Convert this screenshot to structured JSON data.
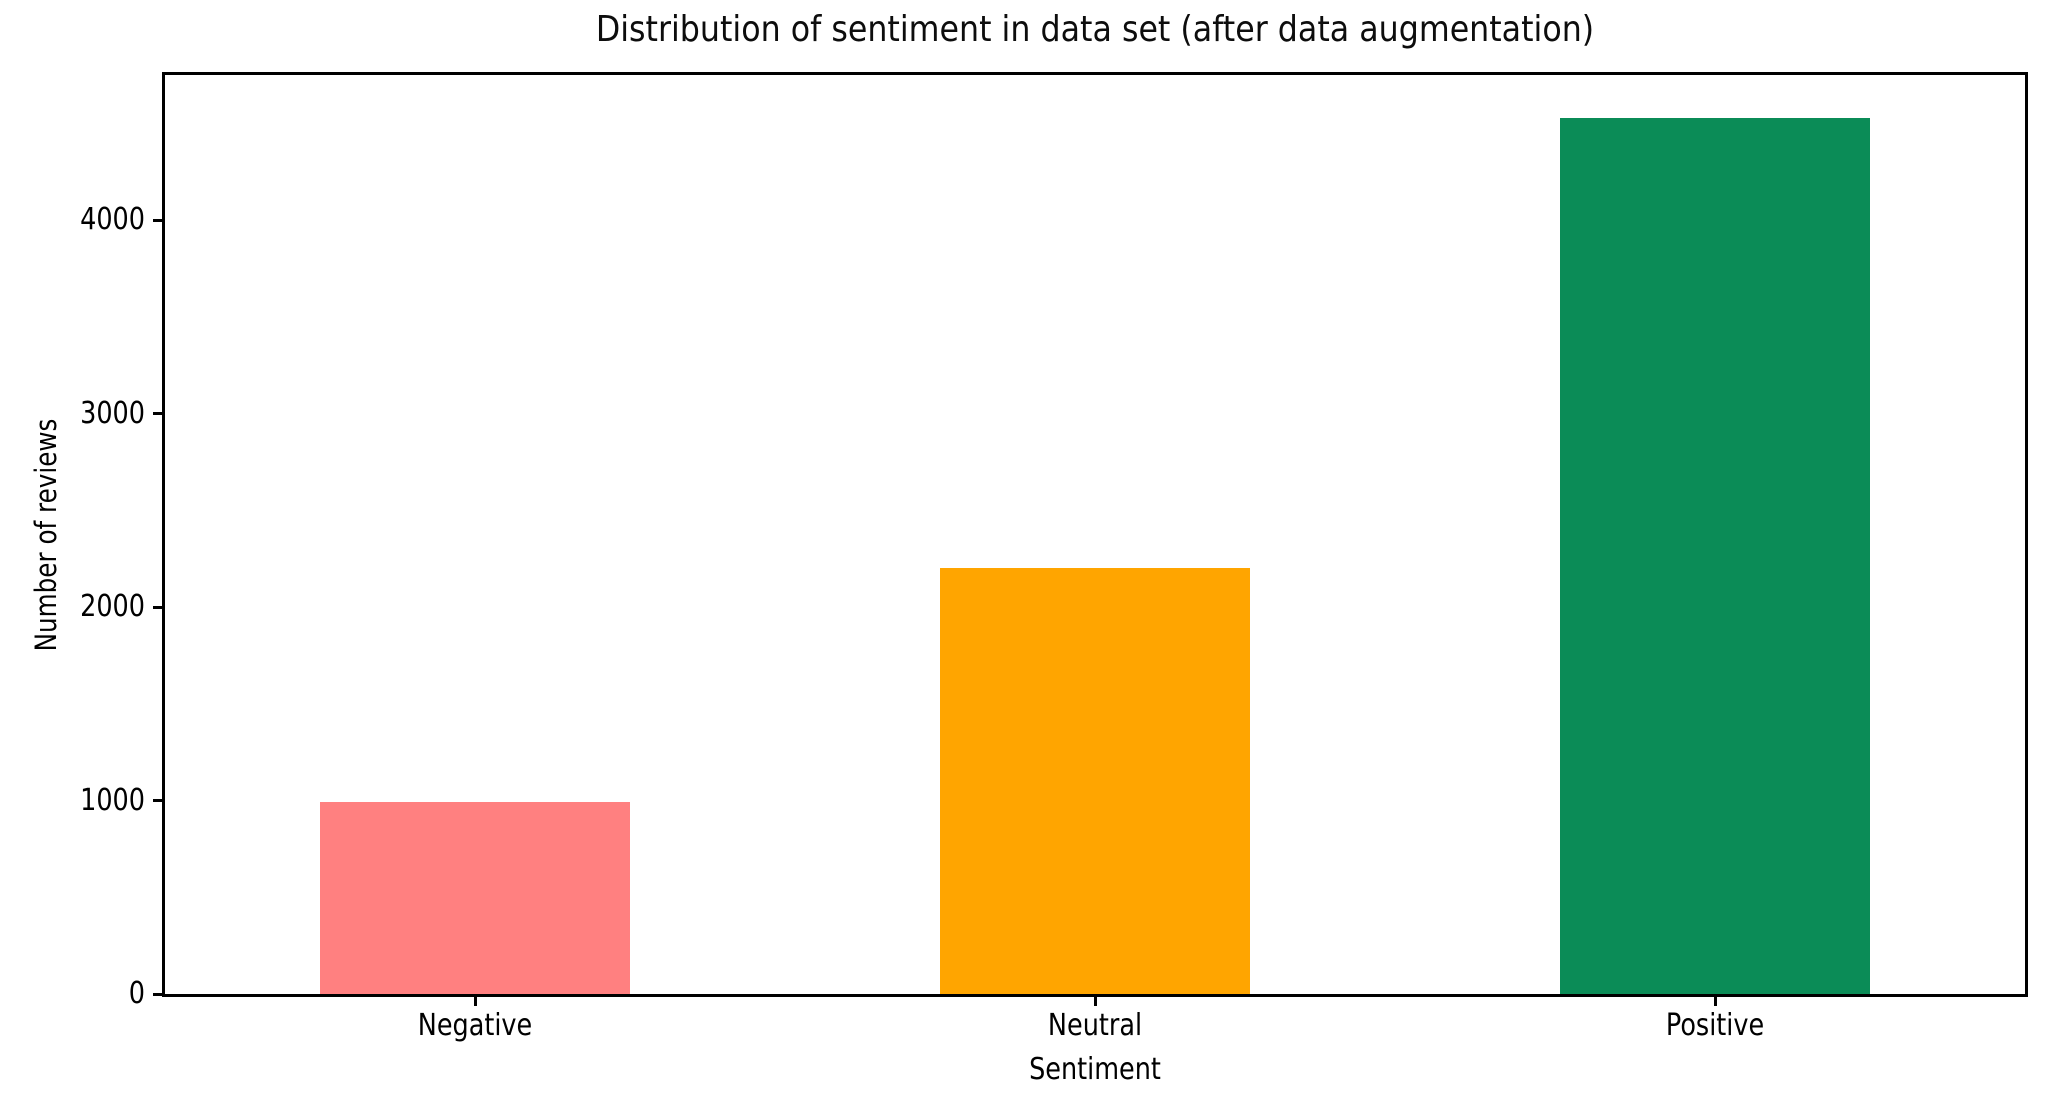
{
  "chart_data": {
    "type": "bar",
    "title": "Distribution of sentiment in data set (after data augmentation)",
    "xlabel": "Sentiment",
    "ylabel": "Number of reviews",
    "categories": [
      "Negative",
      "Neutral",
      "Positive"
    ],
    "values": [
      990,
      2200,
      4530
    ],
    "bar_colors": [
      "#ff8080",
      "#ffa500",
      "#0b8c57"
    ],
    "ylim": [
      0,
      4750
    ],
    "yticks": [
      0,
      1000,
      2000,
      3000,
      4000
    ],
    "bar_width_fraction": 0.5,
    "grid": false,
    "legend": "none",
    "background_color": "#ffffff",
    "axis_color": "#000000",
    "text_color": "#000000"
  }
}
